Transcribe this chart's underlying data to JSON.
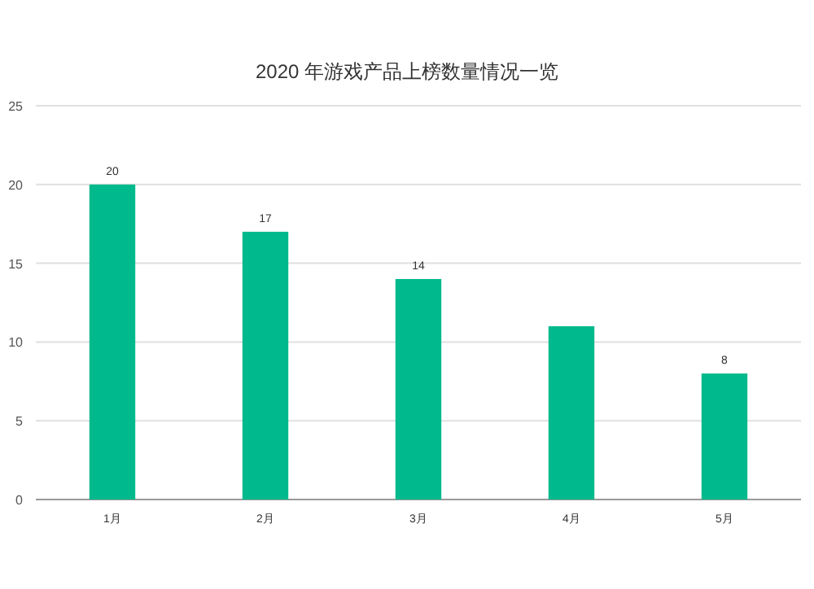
{
  "chart_data": {
    "type": "bar",
    "title": "2020 年游戏产品上榜数量情况一览",
    "categories": [
      "1月",
      "2月",
      "3月",
      "4月",
      "5月"
    ],
    "values": [
      20,
      17,
      14,
      11,
      8
    ],
    "value_labels": [
      "20",
      "17",
      "14",
      null,
      "8"
    ],
    "color": "#00b98c",
    "ylim": [
      0,
      25
    ],
    "yticks": [
      0,
      5,
      10,
      15,
      20,
      25
    ],
    "grid": "y"
  }
}
